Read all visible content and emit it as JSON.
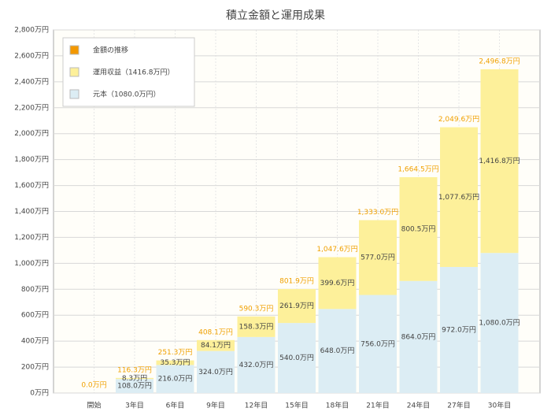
{
  "chart_data": {
    "type": "stacked-bar",
    "title": "積立金額と運用成果",
    "categories": [
      "開始",
      "3年目",
      "6年目",
      "9年目",
      "12年目",
      "15年目",
      "18年目",
      "21年目",
      "24年目",
      "27年目",
      "30年目"
    ],
    "series": [
      {
        "name": "元本（1080.0万円）",
        "color": "#dcedf4",
        "values": [
          0,
          108,
          216,
          324,
          432,
          540,
          648,
          756,
          864,
          972,
          1080
        ],
        "value_labels": [
          null,
          "108.0万円",
          "216.0万円",
          "324.0万円",
          "432.0万円",
          "540.0万円",
          "648.0万円",
          "756.0万円",
          "864.0万円",
          "972.0万円",
          "1,080.0万円"
        ]
      },
      {
        "name": "運用収益（1416.8万円）",
        "color": "#fdf09a",
        "values": [
          0,
          8.3,
          35.3,
          84.1,
          158.3,
          261.9,
          399.6,
          577.0,
          800.5,
          1077.6,
          1416.8
        ],
        "value_labels": [
          null,
          "8.3万円",
          "35.3万円",
          "84.1万円",
          "158.3万円",
          "261.9万円",
          "399.6万円",
          "577.0万円",
          "800.5万円",
          "1,077.6万円",
          "1,416.8万円"
        ]
      }
    ],
    "totals": [
      0,
      116.3,
      251.3,
      408.1,
      590.3,
      801.9,
      1047.6,
      1333.0,
      1664.5,
      2049.6,
      2496.8
    ],
    "total_labels": [
      "0.0万円",
      "116.3万円",
      "251.3万円",
      "408.1万円",
      "590.3万円",
      "801.9万円",
      "1,047.6万円",
      "1,333.0万円",
      "1,664.5万円",
      "2,049.6万円",
      "2,496.8万円"
    ],
    "total_color": "#f0a000",
    "legend": {
      "title": "金額の推移",
      "color": "#f39800"
    },
    "ylim": [
      0,
      2800
    ],
    "yticks": [
      {
        "value": 0,
        "label": "0万円"
      },
      {
        "value": 200,
        "label": "200万円"
      },
      {
        "value": 400,
        "label": "400万円"
      },
      {
        "value": 600,
        "label": "600万円"
      },
      {
        "value": 800,
        "label": "800万円"
      },
      {
        "value": 1000,
        "label": "1,000万円"
      },
      {
        "value": 1200,
        "label": "1,200万円"
      },
      {
        "value": 1400,
        "label": "1,400万円"
      },
      {
        "value": 1600,
        "label": "1,600万円"
      },
      {
        "value": 1800,
        "label": "1,800万円"
      },
      {
        "value": 2000,
        "label": "2,000万円"
      },
      {
        "value": 2200,
        "label": "2,200万円"
      },
      {
        "value": 2400,
        "label": "2,400万円"
      },
      {
        "value": 2600,
        "label": "2,600万円"
      },
      {
        "value": 2800,
        "label": "2,800万円"
      }
    ],
    "grid": true
  }
}
